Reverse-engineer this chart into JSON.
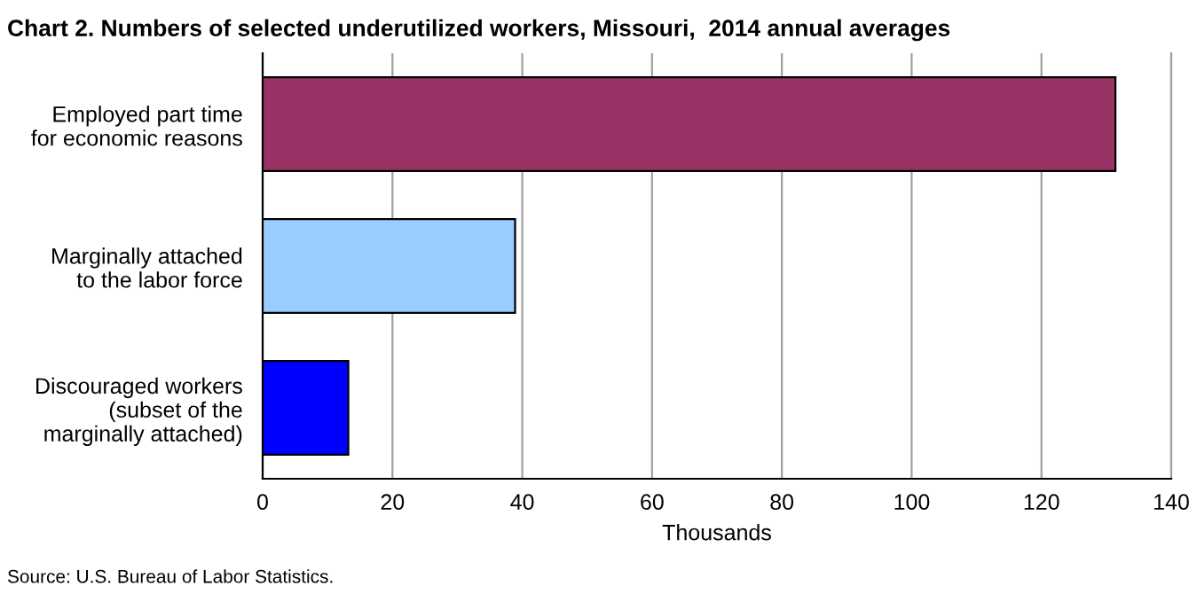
{
  "chart_data": {
    "type": "bar",
    "orientation": "horizontal",
    "title": "Chart 2. Numbers of selected underutilized workers, Missouri,  2014 annual averages",
    "categories": [
      "Employed part time\nfor economic reasons",
      "Marginally attached\nto the labor force",
      "Discouraged workers\n(subset of the\nmarginally attached)"
    ],
    "values": [
      131.4,
      38.9,
      13.2
    ],
    "colors": [
      "#993366",
      "#99ccff",
      "#0000ff"
    ],
    "xlabel": "Thousands",
    "xlim": [
      0,
      140
    ],
    "xticks": [
      0,
      20,
      40,
      60,
      80,
      100,
      120,
      140
    ],
    "grid": "x",
    "annotations": [
      "Source: U.S. Bureau of Labor Statistics."
    ]
  }
}
